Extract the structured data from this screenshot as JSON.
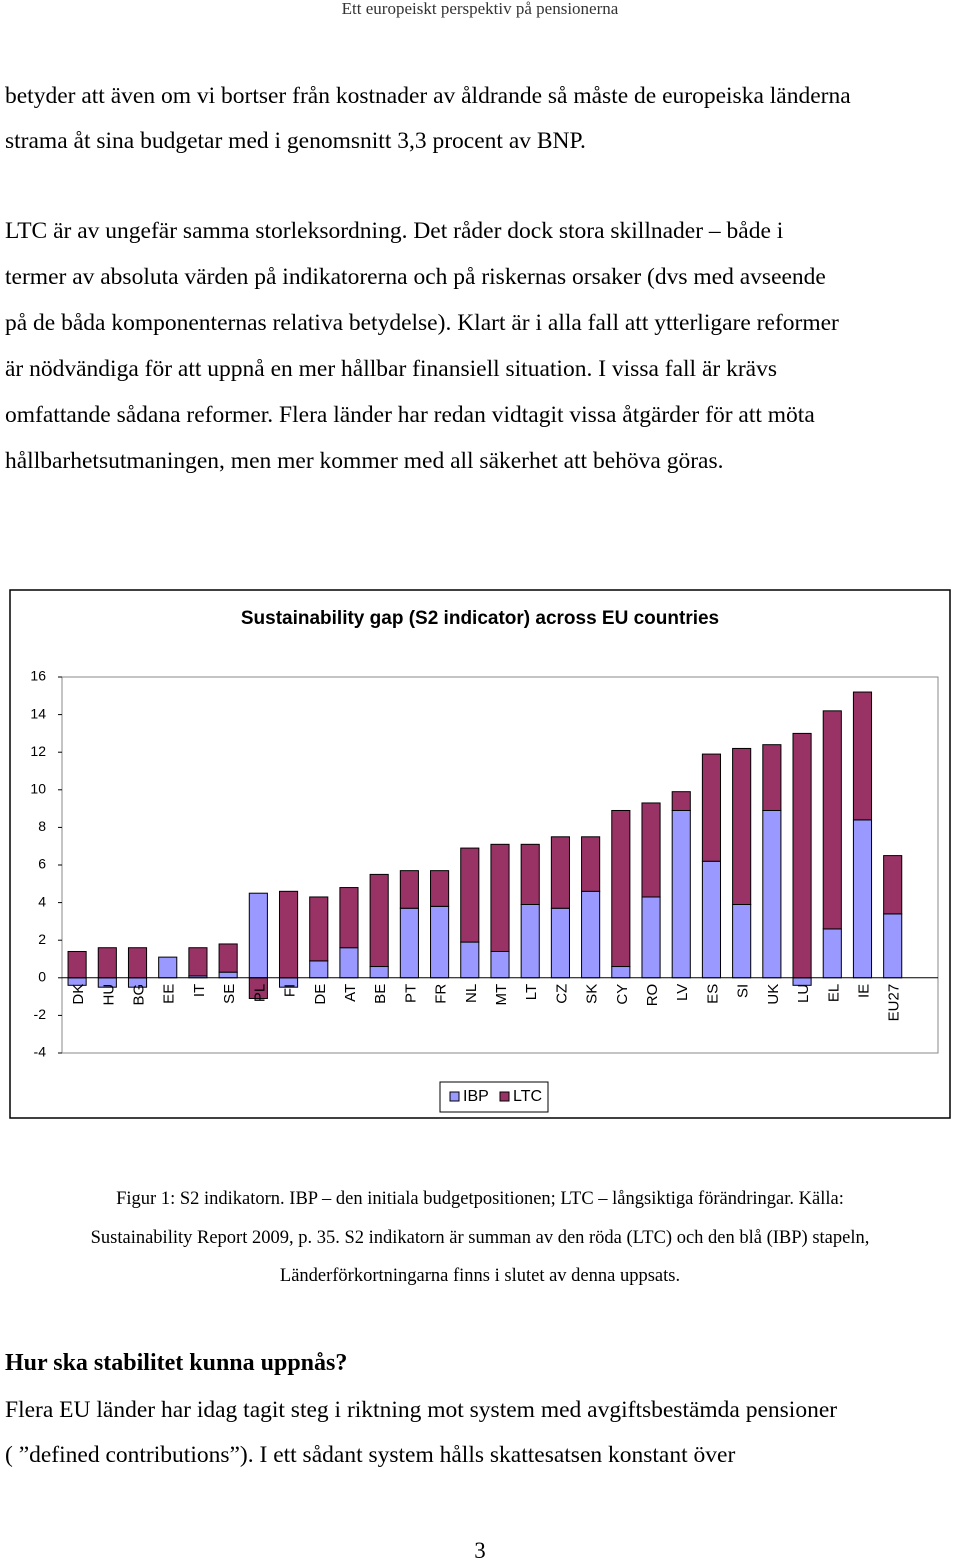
{
  "header": "Ett europeiskt perspektiv på pensionerna",
  "paragraphs": [
    [
      "betyder att även om vi bortser från kostnader av åldrande så måste de europeiska länderna",
      "strama åt sina budgetar med i genomsnitt 3,3 procent av BNP."
    ],
    [
      "LTC är av ungefär samma storleksordning. Det råder dock stora skillnader – både i",
      "termer av absoluta värden på indikatorerna och på riskernas orsaker (dvs med avseende",
      "på de båda komponenternas relativa betydelse). Klart är i alla fall att ytterligare reformer",
      "är nödvändiga för att uppnå en mer hållbar finansiell situation. I vissa fall är krävs",
      "omfattande sådana reformer. Flera länder har redan vidtagit vissa åtgärder för att möta",
      "hållbarhetsutmaningen, men mer kommer med all säkerhet att behöva göras."
    ]
  ],
  "chart_data": {
    "type": "stacked_bar",
    "title": "Sustainability gap (S2 indicator) across EU countries",
    "categories": [
      "DK",
      "HU",
      "BG",
      "EE",
      "IT",
      "SE",
      "PL",
      "FI",
      "DE",
      "AT",
      "BE",
      "PT",
      "FR",
      "NL",
      "MT",
      "LT",
      "CZ",
      "SK",
      "CY",
      "RO",
      "LV",
      "ES",
      "SI",
      "UK",
      "LU",
      "EL",
      "IE",
      "EU27"
    ],
    "series": [
      {
        "name": "IBP",
        "color": "#9999ff",
        "values": [
          -0.4,
          -0.5,
          -0.5,
          1.1,
          0.1,
          0.3,
          4.5,
          -0.5,
          0.9,
          1.6,
          0.6,
          3.7,
          3.8,
          1.9,
          1.4,
          3.9,
          3.7,
          4.6,
          0.6,
          4.3,
          8.9,
          6.2,
          3.9,
          8.9,
          -0.4,
          2.6,
          8.4,
          3.4
        ]
      },
      {
        "name": "LTC",
        "color": "#993366",
        "values": [
          1.4,
          1.6,
          1.6,
          0.0,
          1.5,
          1.5,
          -1.1,
          4.6,
          3.4,
          3.2,
          4.9,
          2.0,
          1.9,
          5.0,
          5.7,
          3.2,
          3.8,
          2.9,
          8.3,
          5.0,
          1.0,
          5.7,
          8.3,
          3.5,
          13.0,
          11.6,
          6.8,
          3.1
        ]
      }
    ],
    "ylim": [
      -4,
      16
    ],
    "yticks": [
      -4,
      -2,
      0,
      2,
      4,
      6,
      8,
      10,
      12,
      14,
      16
    ],
    "legend": "bottom"
  },
  "caption": [
    "Figur 1: S2 indikatorn. IBP – den initiala budgetpositionen; LTC – långsiktiga förändringar. Källa:",
    "Sustainability Report 2009, p. 35. S2 indikatorn är summan av den röda (LTC) och den blå (IBP) stapeln,",
    "Länderförkortningarna finns i slutet av denna uppsats."
  ],
  "heading": "Hur ska stabilitet kunna uppnås?",
  "paragraphs2": [
    [
      "Flera EU länder har idag tagit steg i riktning mot system med avgiftsbestämda pensioner",
      "( ”defined contributions”). I ett sådant system hålls skattesatsen konstant över"
    ]
  ],
  "page_number": "3"
}
